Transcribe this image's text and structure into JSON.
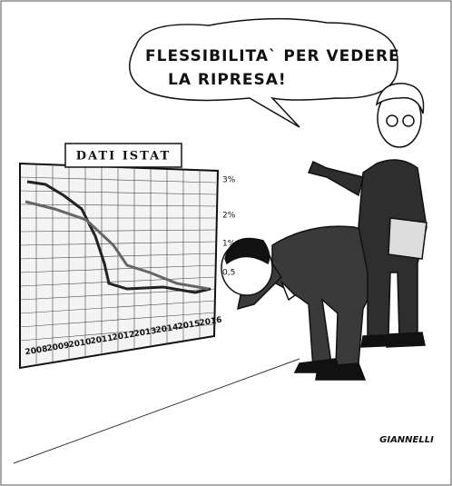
{
  "speech_bubble": {
    "lines": [
      "FLESSIBILITA` PER VEDERE",
      "LA RIPRESA!"
    ]
  },
  "board": {
    "title": "DATI ISTAT",
    "years": [
      "2008",
      "2009",
      "2010",
      "2011",
      "2012",
      "2013",
      "2014",
      "2015",
      "2016"
    ],
    "percent_labels": [
      "3%",
      "2%",
      "1%",
      "0,5"
    ]
  },
  "signature": "GIANNELLI"
}
